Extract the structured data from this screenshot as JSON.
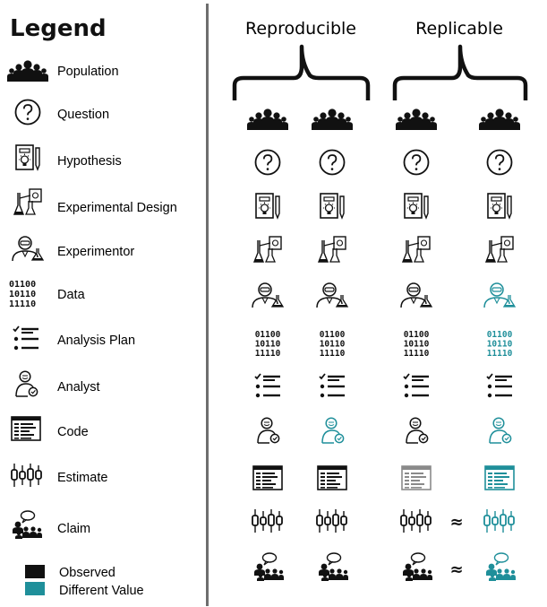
{
  "legend": {
    "title": "Legend",
    "items": [
      {
        "icon": "population-icon",
        "label": "Population"
      },
      {
        "icon": "question-icon",
        "label": "Question"
      },
      {
        "icon": "hypothesis-icon",
        "label": "Hypothesis"
      },
      {
        "icon": "experimental-design-icon",
        "label": "Experimental Design"
      },
      {
        "icon": "experimentor-icon",
        "label": "Experimentor"
      },
      {
        "icon": "data-icon",
        "label": "Data"
      },
      {
        "icon": "analysis-plan-icon",
        "label": "Analysis Plan"
      },
      {
        "icon": "analyst-icon",
        "label": "Analyst"
      },
      {
        "icon": "code-icon",
        "label": "Code"
      },
      {
        "icon": "estimate-icon",
        "label": "Estimate"
      },
      {
        "icon": "claim-icon",
        "label": "Claim"
      }
    ],
    "key": [
      {
        "label": "Observed",
        "color": "#111111"
      },
      {
        "label": "Different Value",
        "color": "#1f8f9a"
      }
    ]
  },
  "data_rows": [
    "01100",
    "10110",
    "11110"
  ],
  "groups": [
    {
      "title": "Reproducible"
    },
    {
      "title": "Replicable"
    }
  ],
  "approx_symbol": "≈",
  "colors": {
    "observed": "#111111",
    "different": "#1f8f9a",
    "muted": "#8a8a8a"
  },
  "columns": [
    {
      "group": "Reproducible",
      "states": [
        "observed",
        "observed",
        "observed",
        "observed",
        "observed",
        "observed",
        "observed",
        "observed",
        "observed",
        "observed",
        "observed"
      ]
    },
    {
      "group": "Reproducible",
      "states": [
        "observed",
        "observed",
        "observed",
        "observed",
        "observed",
        "observed",
        "observed",
        "different",
        "observed",
        "observed",
        "observed"
      ]
    },
    {
      "group": "Replicable",
      "states": [
        "observed",
        "observed",
        "observed",
        "observed",
        "observed",
        "observed",
        "observed",
        "observed",
        "muted",
        "observed",
        "observed"
      ]
    },
    {
      "group": "Replicable",
      "states": [
        "observed",
        "observed",
        "observed",
        "observed",
        "different",
        "different",
        "observed",
        "different",
        "different",
        "different",
        "different"
      ]
    }
  ],
  "approx_rows": [
    "estimate-icon",
    "claim-icon"
  ]
}
